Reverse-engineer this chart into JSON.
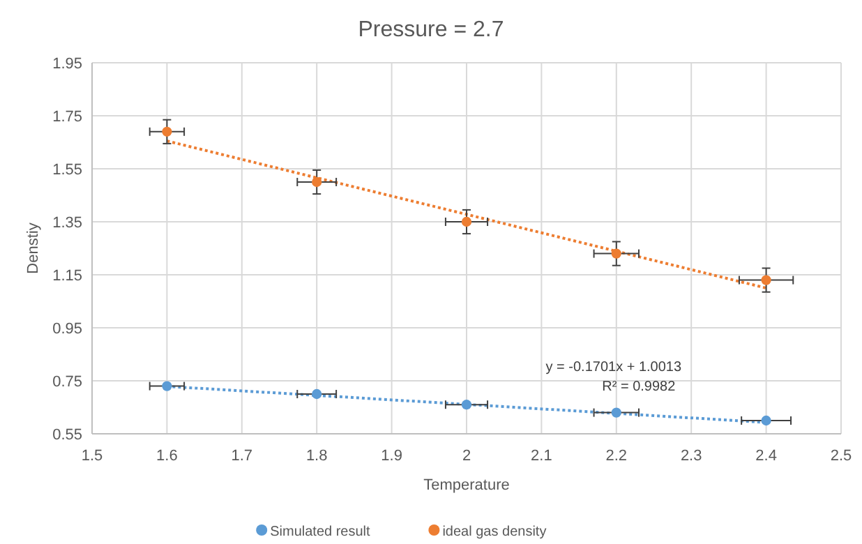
{
  "chart_data": {
    "type": "scatter",
    "title": "Pressure = 2.7",
    "xlabel": "Temperature",
    "ylabel": "Denstiy",
    "x": [
      1.6,
      1.8,
      2.0,
      2.2,
      2.4
    ],
    "series": [
      {
        "name": "Simulated result",
        "color": "#5b9bd5",
        "values": [
          0.73,
          0.7,
          0.66,
          0.63,
          0.6
        ],
        "xerrors": [
          0.023,
          0.026,
          0.028,
          0.03,
          0.033
        ],
        "marker": "circle"
      },
      {
        "name": "ideal gas density",
        "color": "#ed7d31",
        "values": [
          1.69,
          1.5,
          1.35,
          1.23,
          1.13
        ],
        "errors": [
          0.045,
          0.045,
          0.045,
          0.045,
          0.045
        ],
        "xerrors": [
          0.023,
          0.026,
          0.028,
          0.03,
          0.036
        ],
        "marker": "circle"
      },
      {
        "type": "line",
        "color": "#5b9bd5",
        "values": [
          0.729,
          0.695,
          0.661,
          0.627,
          0.593
        ],
        "marker": "none",
        "line_style": "dotted"
      },
      {
        "type": "line",
        "color": "#ed7d31",
        "values": [
          1.655,
          1.516,
          1.378,
          1.239,
          1.1
        ],
        "marker": "none",
        "line_style": "dotted"
      }
    ],
    "annotations": [
      "y = -0.1701x + 1.0013",
      "R² = 0.9982"
    ],
    "xlim": [
      1.5,
      2.5
    ],
    "xticks": [
      1.5,
      1.6,
      1.7,
      1.8,
      1.9,
      2,
      2.1,
      2.2,
      2.3,
      2.4,
      2.5
    ],
    "ylim": [
      0.55,
      1.95
    ],
    "yticks": [
      0.55,
      0.75,
      0.95,
      1.15,
      1.35,
      1.55,
      1.75,
      1.95
    ],
    "grid": true,
    "legend": "bottom"
  }
}
